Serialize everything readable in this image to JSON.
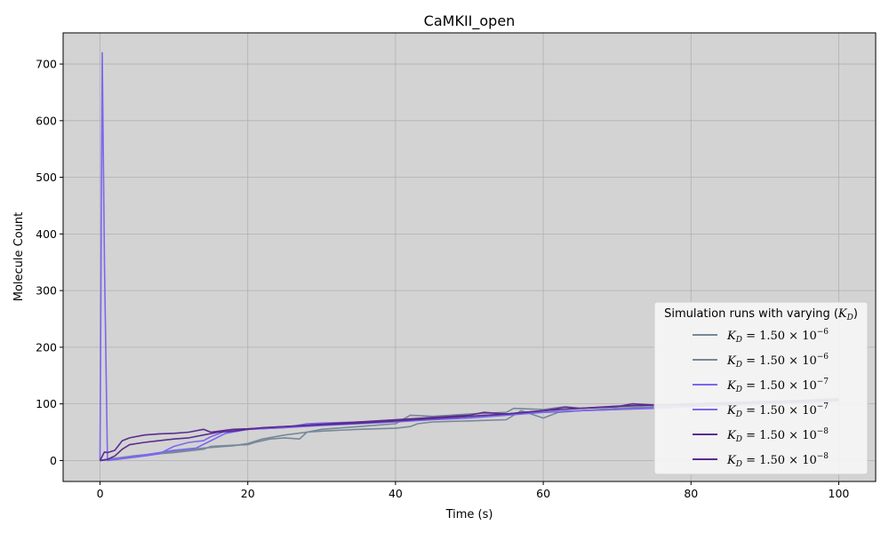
{
  "chart_data": {
    "type": "line",
    "title": "CaMKII_open",
    "xlabel": "Time (s)",
    "ylabel": "Molecule Count",
    "xlim": [
      -5,
      105
    ],
    "ylim": [
      -37,
      755
    ],
    "xticks": [
      0,
      20,
      40,
      60,
      80,
      100
    ],
    "yticks": [
      0,
      100,
      200,
      300,
      400,
      500,
      600,
      700
    ],
    "grid": true,
    "background": "#d3d3d3",
    "legend": {
      "title": "Simulation runs with varying (K_D)",
      "placement": "lower-right",
      "entries": [
        {
          "kd": "K_D = 1.50 × 10^-6",
          "mantissa": "1.50",
          "exponent": "−6"
        },
        {
          "kd": "K_D = 1.50 × 10^-6",
          "mantissa": "1.50",
          "exponent": "−6"
        },
        {
          "kd": "K_D = 1.50 × 10^-7",
          "mantissa": "1.50",
          "exponent": "−7"
        },
        {
          "kd": "K_D = 1.50 × 10^-7",
          "mantissa": "1.50",
          "exponent": "−7"
        },
        {
          "kd": "K_D = 1.50 × 10^-8",
          "mantissa": "1.50",
          "exponent": "−8"
        },
        {
          "kd": "K_D = 1.50 × 10^-8",
          "mantissa": "1.50",
          "exponent": "−8"
        }
      ]
    },
    "series": [
      {
        "color": "#778899",
        "x": [
          0,
          2,
          5,
          8,
          10,
          14,
          15,
          18,
          20,
          21,
          23,
          25,
          27,
          28,
          30,
          35,
          40,
          42,
          43,
          45,
          50,
          55,
          57,
          60,
          62,
          65,
          70,
          75,
          80,
          85,
          90,
          95,
          100
        ],
        "y": [
          0,
          3,
          8,
          12,
          14,
          20,
          25,
          27,
          28,
          32,
          38,
          40,
          38,
          50,
          52,
          55,
          57,
          60,
          65,
          68,
          70,
          72,
          88,
          75,
          85,
          88,
          92,
          95,
          98,
          100,
          102,
          105,
          108
        ]
      },
      {
        "color": "#778899",
        "x": [
          0,
          2,
          5,
          8,
          10,
          14,
          18,
          20,
          22,
          25,
          28,
          30,
          35,
          40,
          42,
          45,
          50,
          55,
          56,
          60,
          63,
          65,
          70,
          75,
          80,
          85,
          90,
          95,
          100
        ],
        "y": [
          0,
          4,
          9,
          12,
          16,
          22,
          26,
          30,
          38,
          45,
          50,
          55,
          60,
          65,
          80,
          78,
          82,
          85,
          92,
          90,
          95,
          92,
          95,
          98,
          100,
          102,
          104,
          106,
          110
        ]
      },
      {
        "color": "#7b68ee",
        "x": [
          0,
          0.3,
          0.6,
          1,
          3,
          6,
          8,
          10,
          12,
          14,
          15,
          17,
          20,
          25,
          30,
          35,
          40,
          45,
          50,
          55,
          60,
          65,
          70,
          75,
          80,
          85,
          90,
          95,
          100
        ],
        "y": [
          0,
          720,
          350,
          0,
          3,
          8,
          12,
          25,
          32,
          35,
          42,
          52,
          55,
          58,
          62,
          65,
          68,
          72,
          75,
          80,
          85,
          88,
          90,
          92,
          95,
          98,
          100,
          102,
          105
        ]
      },
      {
        "color": "#7b68ee",
        "x": [
          0,
          2,
          4,
          6,
          8,
          10,
          13,
          15,
          17,
          20,
          25,
          28,
          30,
          35,
          40,
          45,
          50,
          55,
          60,
          65,
          70,
          75,
          80,
          85,
          90,
          95,
          100
        ],
        "y": [
          0,
          2,
          6,
          10,
          14,
          18,
          22,
          35,
          48,
          55,
          58,
          65,
          66,
          68,
          70,
          74,
          78,
          82,
          85,
          88,
          90,
          93,
          96,
          98,
          100,
          103,
          106
        ]
      },
      {
        "color": "#5b2c8f",
        "x": [
          0,
          0.6,
          1,
          2,
          3,
          4,
          6,
          8,
          10,
          12,
          14,
          15,
          18,
          20,
          25,
          30,
          35,
          40,
          45,
          50,
          52,
          55,
          60,
          65,
          70,
          72,
          75,
          80,
          85,
          90,
          95,
          100
        ],
        "y": [
          0,
          15,
          14,
          18,
          35,
          40,
          45,
          47,
          48,
          50,
          55,
          50,
          55,
          56,
          60,
          64,
          68,
          72,
          76,
          80,
          85,
          82,
          88,
          92,
          95,
          100,
          98,
          98,
          100,
          102,
          104,
          106
        ]
      },
      {
        "color": "#5b2c8f",
        "x": [
          0,
          1,
          2,
          3,
          4,
          6,
          8,
          10,
          12,
          14,
          16,
          18,
          20,
          22,
          25,
          30,
          35,
          40,
          45,
          50,
          55,
          60,
          63,
          65,
          70,
          75,
          80,
          85,
          90,
          95,
          100
        ],
        "y": [
          0,
          2,
          8,
          20,
          28,
          32,
          35,
          38,
          40,
          45,
          50,
          52,
          55,
          58,
          60,
          63,
          66,
          70,
          74,
          78,
          82,
          88,
          94,
          92,
          96,
          98,
          100,
          102,
          104,
          106,
          108
        ]
      }
    ]
  }
}
